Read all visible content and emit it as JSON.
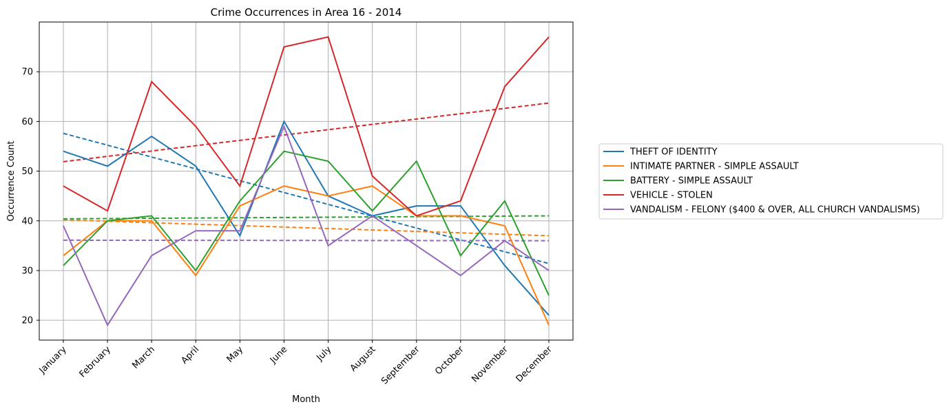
{
  "chart_data": {
    "type": "line",
    "title": "Crime Occurrences in Area 16 - 2014",
    "xlabel": "Month",
    "ylabel": "Occurrence Count",
    "categories": [
      "January",
      "February",
      "March",
      "April",
      "May",
      "June",
      "July",
      "August",
      "September",
      "October",
      "November",
      "December"
    ],
    "ylim": [
      16,
      80
    ],
    "yticks": [
      20,
      30,
      40,
      50,
      60,
      70
    ],
    "grid": true,
    "legend_position": "right",
    "series": [
      {
        "name": "THEFT OF IDENTITY",
        "color": "#1f77b4",
        "values": [
          54,
          51,
          57,
          51,
          37,
          60,
          45,
          41,
          43,
          43,
          31,
          21
        ],
        "trend": [
          57.6,
          31.4
        ]
      },
      {
        "name": "INTIMATE PARTNER - SIMPLE ASSAULT",
        "color": "#ff7f0e",
        "values": [
          33,
          40,
          40,
          29,
          43,
          47,
          45,
          47,
          41,
          41,
          39,
          19
        ],
        "trend": [
          40.2,
          37.0
        ]
      },
      {
        "name": "BATTERY - SIMPLE ASSAULT",
        "color": "#2ca02c",
        "values": [
          31,
          40,
          41,
          30,
          44,
          54,
          52,
          42,
          52,
          33,
          44,
          25
        ],
        "trend": [
          40.4,
          41.0
        ]
      },
      {
        "name": "VEHICLE - STOLEN",
        "color": "#d62728",
        "values": [
          47,
          42,
          68,
          59,
          47,
          75,
          77,
          49,
          41,
          44,
          67,
          77
        ],
        "trend": [
          51.9,
          63.7
        ]
      },
      {
        "name": "VANDALISM - FELONY ($400 & OVER, ALL CHURCH VANDALISMS)",
        "color": "#9467bd",
        "values": [
          39,
          19,
          33,
          38,
          38,
          59,
          35,
          41,
          35,
          29,
          36,
          30
        ],
        "trend": [
          36.1,
          36.0
        ]
      }
    ]
  }
}
